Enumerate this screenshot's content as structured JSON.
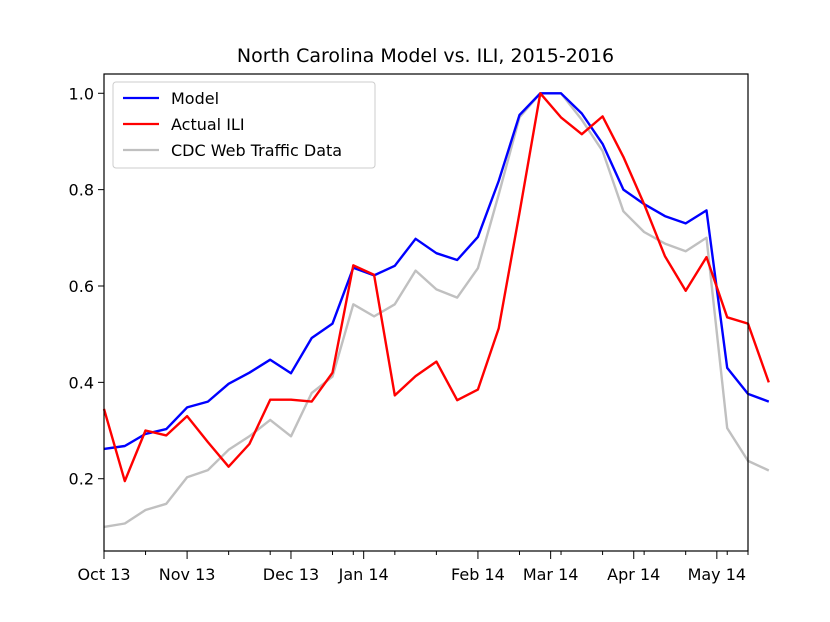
{
  "chart_data": {
    "type": "line",
    "title": "North Carolina Model vs. ILI, 2015-2016",
    "xlabel": "",
    "ylabel": "",
    "ylim": [
      0.05,
      1.04
    ],
    "xlim": [
      0,
      31
    ],
    "grid": false,
    "legend_position": "top-left",
    "x_tick_labels": [
      {
        "index": 0,
        "label": "Oct 13"
      },
      {
        "index": 4,
        "label": "Nov 13"
      },
      {
        "index": 9,
        "label": "Dec 13"
      },
      {
        "index": 12.5,
        "label": "Jan 14"
      },
      {
        "index": 18,
        "label": "Feb 14"
      },
      {
        "index": 21.5,
        "label": "Mar 14"
      },
      {
        "index": 25.5,
        "label": "Apr 14"
      },
      {
        "index": 29.5,
        "label": "May 14"
      }
    ],
    "x_minor_ticks": [
      0,
      2,
      4,
      6,
      8,
      9,
      11,
      12,
      14,
      16,
      18,
      20,
      22,
      24,
      26,
      28,
      30,
      31
    ],
    "y_ticks": [
      0.2,
      0.4,
      0.6,
      0.8,
      1.0
    ],
    "y_tick_labels": [
      "0.2",
      "0.4",
      "0.6",
      "0.8",
      "1.0"
    ],
    "series": [
      {
        "name": "Model",
        "color": "#0000ff",
        "values": [
          0.262,
          0.268,
          0.293,
          0.303,
          0.348,
          0.36,
          0.397,
          0.42,
          0.447,
          0.419,
          0.492,
          0.522,
          0.638,
          0.622,
          0.642,
          0.698,
          0.668,
          0.654,
          0.702,
          0.818,
          0.955,
          1.0,
          1.0,
          0.958,
          0.895,
          0.8,
          0.77,
          0.745,
          0.73,
          0.757,
          0.43,
          0.376,
          0.36
        ]
      },
      {
        "name": "Actual ILI",
        "color": "#ff0000",
        "values": [
          0.345,
          0.195,
          0.3,
          0.29,
          0.33,
          0.276,
          0.225,
          0.272,
          0.364,
          0.364,
          0.36,
          0.42,
          0.643,
          0.623,
          0.373,
          0.413,
          0.443,
          0.363,
          0.385,
          0.512,
          0.752,
          1.0,
          0.95,
          0.915,
          0.952,
          0.868,
          0.77,
          0.662,
          0.59,
          0.66,
          0.535,
          0.522,
          0.4
        ]
      },
      {
        "name": "CDC Web Traffic Data",
        "color": "#c0c0c0",
        "values": [
          0.1,
          0.107,
          0.135,
          0.148,
          0.203,
          0.218,
          0.26,
          0.288,
          0.322,
          0.288,
          0.378,
          0.412,
          0.562,
          0.537,
          0.562,
          0.632,
          0.593,
          0.576,
          0.637,
          0.79,
          0.95,
          1.0,
          1.0,
          0.945,
          0.88,
          0.755,
          0.712,
          0.688,
          0.672,
          0.7,
          0.305,
          0.237,
          0.217
        ]
      }
    ]
  }
}
